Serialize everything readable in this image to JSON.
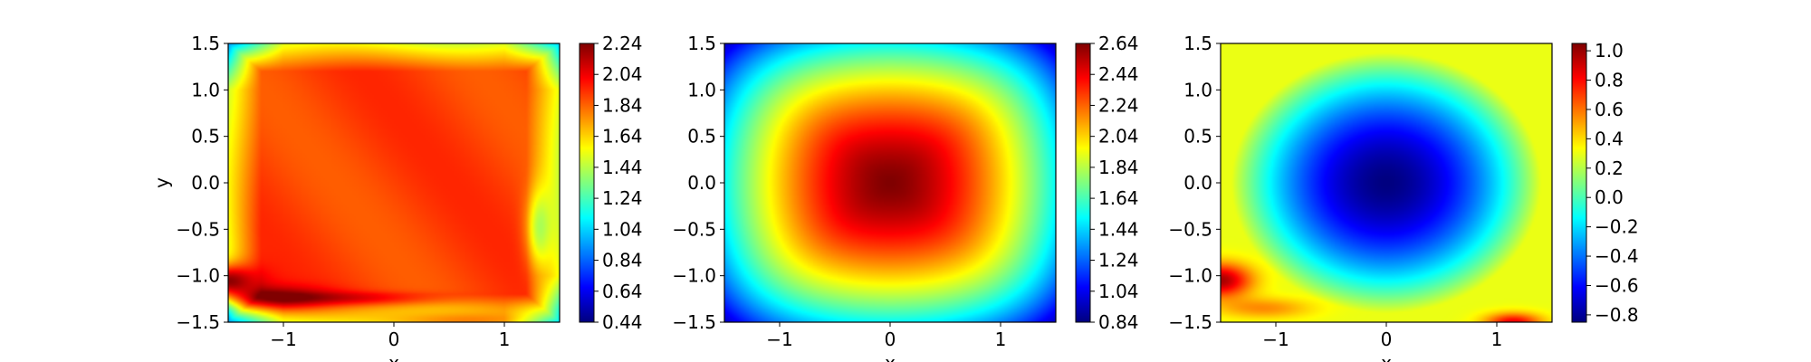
{
  "chart_data": [
    {
      "type": "heatmap",
      "colormap": "jet",
      "xlabel": "x",
      "ylabel": "y",
      "xlim": [
        -1.5,
        1.5
      ],
      "ylim": [
        -1.5,
        1.5
      ],
      "x_ticks": [
        -1,
        0,
        1
      ],
      "y_ticks": [
        -1.5,
        -1.0,
        -0.5,
        0.0,
        0.5,
        1.0,
        1.5
      ],
      "x_tick_labels": [
        "−1",
        "0",
        "1"
      ],
      "y_tick_labels": [
        "−1.5",
        "−1.0",
        "−0.5",
        "0.0",
        "0.5",
        "1.0",
        "1.5"
      ],
      "colorbar": {
        "min": 0.44,
        "max": 2.24,
        "ticks": [
          0.44,
          0.64,
          0.84,
          1.04,
          1.24,
          1.44,
          1.64,
          1.84,
          2.04,
          2.24
        ],
        "tick_labels": [
          "0.44",
          "0.64",
          "0.84",
          "1.04",
          "1.24",
          "1.44",
          "1.64",
          "1.84",
          "2.04",
          "2.24"
        ]
      },
      "field": {
        "interior_value": 1.9,
        "edge_value": 1.2,
        "features": [
          {
            "kind": "peak",
            "x": -1.5,
            "y": -1.05,
            "value": 2.24,
            "description": "dark red streak at left-bottom"
          },
          {
            "kind": "peak",
            "x": 0.6,
            "y": -1.45,
            "value": 2.1,
            "description": "red band along bottom"
          },
          {
            "kind": "low",
            "x": -1.5,
            "y": 1.5,
            "value": 1.0,
            "description": "cyan top-left corner"
          },
          {
            "kind": "low",
            "x": 1.5,
            "y": 1.5,
            "value": 1.0,
            "description": "cyan top-right corner"
          },
          {
            "kind": "low",
            "x": -1.5,
            "y": -1.5,
            "value": 1.0,
            "description": "cyan bottom-left corner"
          },
          {
            "kind": "low",
            "x": 1.5,
            "y": -1.5,
            "value": 1.0,
            "description": "cyan bottom-right corner"
          }
        ]
      }
    },
    {
      "type": "heatmap",
      "colormap": "jet",
      "xlabel": "x",
      "ylabel": "",
      "xlim": [
        -1.5,
        1.5
      ],
      "ylim": [
        -1.5,
        1.5
      ],
      "x_ticks": [
        -1,
        0,
        1
      ],
      "y_ticks": [
        -1.5,
        -1.0,
        -0.5,
        0.0,
        0.5,
        1.0,
        1.5
      ],
      "x_tick_labels": [
        "−1",
        "0",
        "1"
      ],
      "y_tick_labels": [
        "−1.5",
        "−1.0",
        "−0.5",
        "0.0",
        "0.5",
        "1.0",
        "1.5"
      ],
      "colorbar": {
        "min": 0.84,
        "max": 2.64,
        "ticks": [
          0.84,
          1.04,
          1.24,
          1.44,
          1.64,
          1.84,
          2.04,
          2.24,
          2.44,
          2.64
        ],
        "tick_labels": [
          "0.84",
          "1.04",
          "1.24",
          "1.44",
          "1.64",
          "1.84",
          "2.04",
          "2.24",
          "2.44",
          "2.64"
        ]
      },
      "field": {
        "center_value": 2.64,
        "corner_value": 0.95,
        "description": "radial peak at origin decreasing toward corners"
      }
    },
    {
      "type": "heatmap",
      "colormap": "jet",
      "xlabel": "x",
      "ylabel": "",
      "xlim": [
        -1.5,
        1.5
      ],
      "ylim": [
        -1.5,
        1.5
      ],
      "x_ticks": [
        -1,
        0,
        1
      ],
      "y_ticks": [
        -1.5,
        -1.0,
        -0.5,
        0.0,
        0.5,
        1.0,
        1.5
      ],
      "x_tick_labels": [
        "−1",
        "0",
        "1"
      ],
      "y_tick_labels": [
        "−1.5",
        "−1.0",
        "−0.5",
        "0.0",
        "0.5",
        "1.0",
        "1.5"
      ],
      "colorbar": {
        "min": -0.85,
        "max": 1.05,
        "ticks": [
          -0.8,
          -0.6,
          -0.4,
          -0.2,
          0.0,
          0.2,
          0.4,
          0.6,
          0.8,
          1.0
        ],
        "tick_labels": [
          "−0.8",
          "−0.6",
          "−0.4",
          "−0.2",
          "0.0",
          "0.2",
          "0.4",
          "0.6",
          "0.8",
          "1.0"
        ]
      },
      "field": {
        "center_value": -0.85,
        "edge_value": 0.3,
        "features": [
          {
            "kind": "peak",
            "x": -1.5,
            "y": -1.05,
            "value": 1.05,
            "description": "red streak at left-bottom"
          },
          {
            "kind": "peak",
            "x": 1.1,
            "y": -1.5,
            "value": 0.9,
            "description": "red spot at bottom-right"
          }
        ]
      }
    }
  ]
}
